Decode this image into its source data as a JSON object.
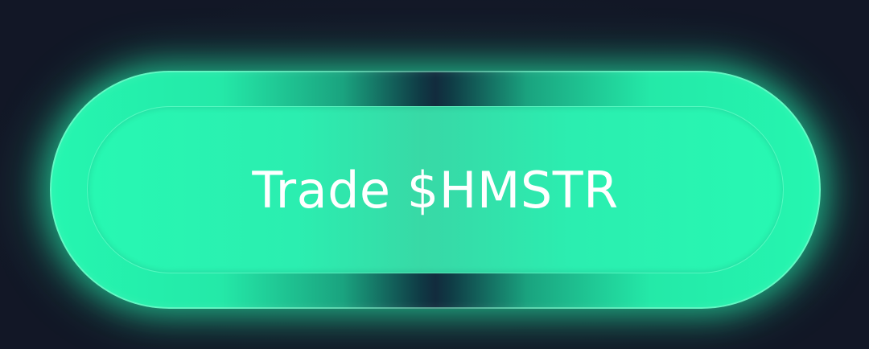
{
  "button": {
    "label": "Trade $HMSTR"
  },
  "colors": {
    "background": "#141a2a",
    "accent": "#25f6b0",
    "label": "#ffffff"
  }
}
